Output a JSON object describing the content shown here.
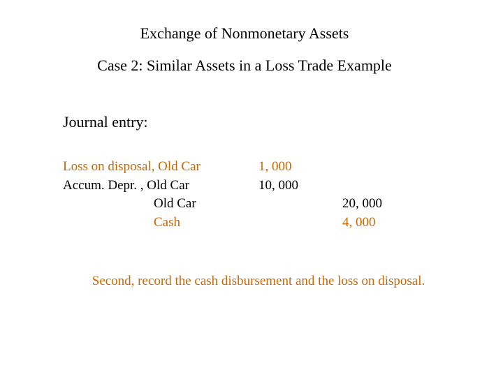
{
  "title": "Exchange of Nonmonetary Assets",
  "subtitle": "Case 2: Similar Assets in a Loss Trade Example",
  "section_header": "Journal entry:",
  "journal": {
    "rows": [
      {
        "account": "Loss on disposal, Old Car",
        "debit": "1, 000",
        "credit": "",
        "indented": false,
        "colored": true
      },
      {
        "account": "Accum. Depr. , Old Car",
        "debit": "10, 000",
        "credit": "",
        "indented": false,
        "colored": false
      },
      {
        "account": "Old Car",
        "debit": "",
        "credit": "20, 000",
        "indented": true,
        "colored": false
      },
      {
        "account": "Cash",
        "debit": "",
        "credit": "4, 000",
        "indented": true,
        "colored": true
      }
    ]
  },
  "footer_note": "Second, record the cash disbursement and the loss on disposal.",
  "colors": {
    "text": "#000000",
    "accent": "#cc6600",
    "background": "#ffffff"
  },
  "typography": {
    "font_family": "Times New Roman",
    "title_fontsize": 22,
    "body_fontsize": 19
  }
}
